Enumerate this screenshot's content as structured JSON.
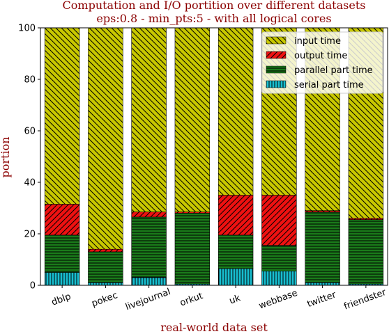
{
  "chart_data": {
    "type": "bar",
    "stacked": true,
    "title": "Computation and I/O portition over different datasets",
    "subtitle": "eps:0.8 - min_pts:5 - with all logical cores",
    "xlabel": "real-world data set",
    "ylabel": "portion",
    "ylim": [
      0,
      100
    ],
    "yticks": [
      0,
      20,
      40,
      60,
      80,
      100
    ],
    "categories": [
      "dblp",
      "pokec",
      "livejournal",
      "orkut",
      "uk",
      "webbase",
      "twitter",
      "friendster"
    ],
    "series": [
      {
        "name": "serial part time",
        "color": "#17becf",
        "hatch": "vertical",
        "values": [
          5,
          1,
          3,
          0.5,
          6.5,
          5.5,
          1,
          0.5
        ]
      },
      {
        "name": "parallel part time",
        "color": "#1a7a1a",
        "hatch": "horizontal",
        "values": [
          14.5,
          12,
          23.5,
          27.5,
          13,
          10,
          27.5,
          25
        ]
      },
      {
        "name": "output time",
        "color": "#ee1111",
        "hatch": "diagonal-up",
        "values": [
          12,
          1,
          2,
          0.5,
          15.5,
          19.5,
          0.5,
          0.5
        ]
      },
      {
        "name": "input time",
        "color": "#c8c800",
        "hatch": "diagonal-down",
        "values": [
          68.5,
          86,
          71.5,
          71.5,
          65,
          65,
          71,
          74
        ]
      }
    ],
    "legend": {
      "position": "top-right",
      "order": [
        "input time",
        "output time",
        "parallel part time",
        "serial part time"
      ]
    },
    "grid": false
  }
}
